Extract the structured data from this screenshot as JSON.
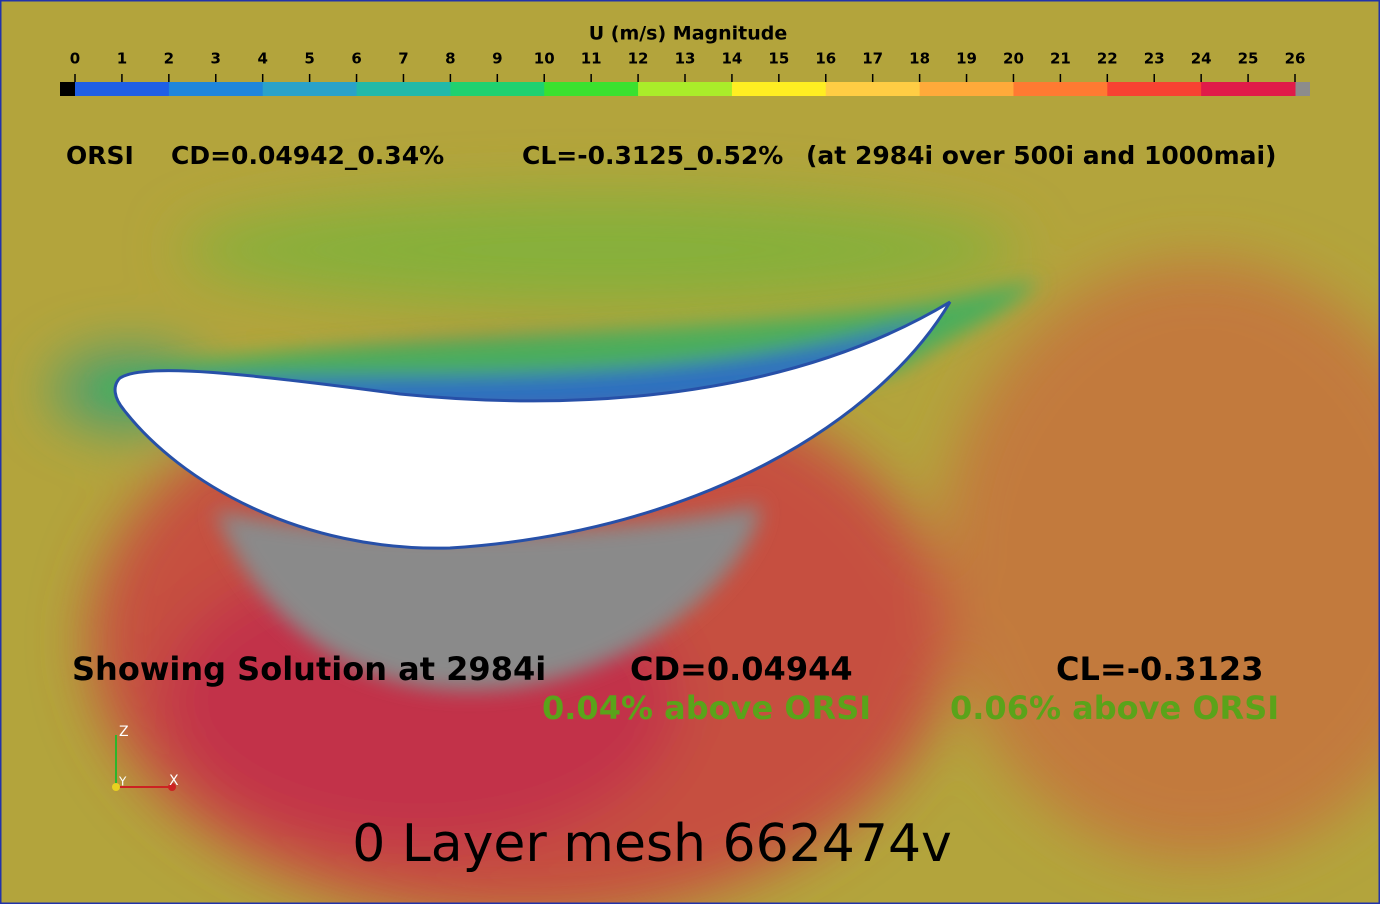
{
  "colorbar": {
    "title": "U (m/s) Magnitude",
    "ticks": [
      0,
      1,
      2,
      3,
      4,
      5,
      6,
      7,
      8,
      9,
      10,
      11,
      12,
      13,
      14,
      15,
      16,
      17,
      18,
      19,
      20,
      21,
      22,
      23,
      24,
      25,
      26
    ],
    "colors": [
      "#1f5fe6",
      "#1f86da",
      "#2aa2c9",
      "#22b9a8",
      "#1fd170",
      "#3ae12f",
      "#aaec2a",
      "#ffee22",
      "#ffcd44",
      "#ffaa3a",
      "#ff7a32",
      "#f84232",
      "#e01b49"
    ],
    "below_color": "#000000",
    "above_color": "#8c8c8c"
  },
  "reference": {
    "label": "ORSI",
    "cd": "CD=0.04942_0.34%",
    "cl": "CL=-0.3125_0.52%",
    "note": "(at 2984i over 500i and 1000mai)"
  },
  "solution": {
    "label": "Showing Solution at 2984i",
    "cd": "CD=0.04944",
    "cl": "CL=-0.3123",
    "cd_delta": "0.04% above ORSI",
    "cl_delta": "0.06% above ORSI"
  },
  "mesh_label": "0 Layer mesh 662474v",
  "axes": {
    "z": "Z",
    "y": "Y",
    "x": "X"
  }
}
